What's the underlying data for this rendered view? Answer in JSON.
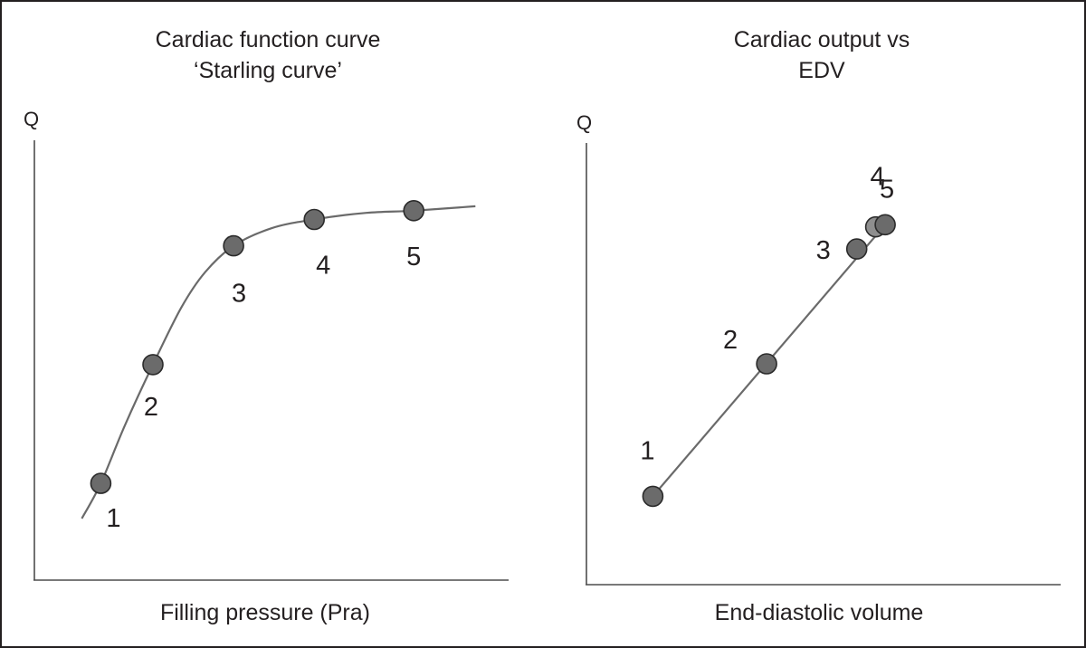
{
  "chart_data": [
    {
      "type": "line",
      "title_lines": [
        "Cardiac function curve",
        "‘Starling curve’"
      ],
      "xlabel": "Filling pressure (Pra)",
      "ylabel": "Q",
      "grid": false,
      "xlim": [
        0,
        10
      ],
      "ylim": [
        0,
        10
      ],
      "points": [
        {
          "label": "1",
          "x": 1.4,
          "y": 2.2
        },
        {
          "label": "2",
          "x": 2.5,
          "y": 4.9
        },
        {
          "label": "3",
          "x": 4.2,
          "y": 7.6
        },
        {
          "label": "4",
          "x": 5.9,
          "y": 8.2
        },
        {
          "label": "5",
          "x": 8.0,
          "y": 8.4
        }
      ],
      "curve": [
        {
          "x": 1.0,
          "y": 1.4
        },
        {
          "x": 1.4,
          "y": 2.2
        },
        {
          "x": 1.9,
          "y": 3.5
        },
        {
          "x": 2.5,
          "y": 4.9
        },
        {
          "x": 3.1,
          "y": 6.2
        },
        {
          "x": 3.6,
          "y": 7.0
        },
        {
          "x": 4.2,
          "y": 7.6
        },
        {
          "x": 5.0,
          "y": 8.0
        },
        {
          "x": 5.9,
          "y": 8.2
        },
        {
          "x": 7.0,
          "y": 8.35
        },
        {
          "x": 8.0,
          "y": 8.4
        },
        {
          "x": 9.3,
          "y": 8.5
        }
      ]
    },
    {
      "type": "line",
      "title_lines": [
        "Cardiac output vs",
        "EDV"
      ],
      "xlabel": "End-diastolic volume",
      "ylabel": "Q",
      "grid": false,
      "xlim": [
        0,
        10
      ],
      "ylim": [
        0,
        10
      ],
      "points": [
        {
          "label": "1",
          "x": 1.4,
          "y": 2.0
        },
        {
          "label": "2",
          "x": 3.8,
          "y": 5.0
        },
        {
          "label": "3",
          "x": 5.7,
          "y": 7.6
        },
        {
          "label": "4",
          "x": 6.1,
          "y": 8.1
        },
        {
          "label": "5",
          "x": 6.3,
          "y": 8.15
        }
      ],
      "curve": [
        {
          "x": 1.4,
          "y": 2.0
        },
        {
          "x": 6.3,
          "y": 8.15
        }
      ]
    }
  ]
}
